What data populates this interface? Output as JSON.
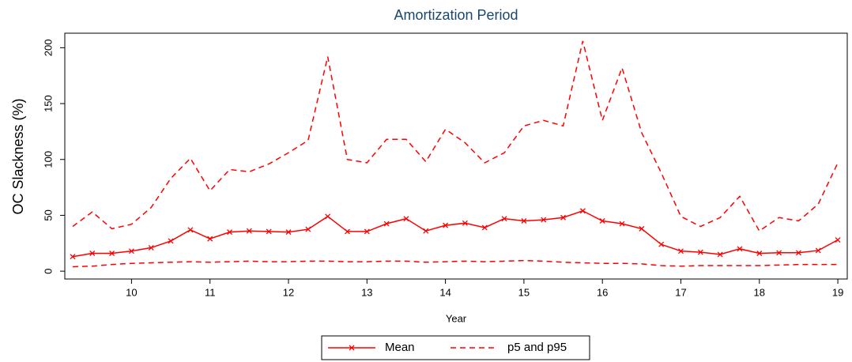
{
  "chart_data": {
    "type": "line",
    "title": "Amortization Period",
    "x_label": "Year",
    "y_label": "OC Slackness (%)",
    "x": [
      9.25,
      9.5,
      9.75,
      10,
      10.25,
      10.5,
      10.75,
      11,
      11.25,
      11.5,
      11.75,
      12,
      12.25,
      12.5,
      12.75,
      13,
      13.25,
      13.5,
      13.75,
      14,
      14.25,
      14.5,
      14.75,
      15,
      15.25,
      15.5,
      15.75,
      16,
      16.25,
      16.5,
      16.75,
      17,
      17.25,
      17.5,
      17.75,
      18,
      18.25,
      18.5,
      18.75,
      19
    ],
    "series": [
      {
        "name": "Mean",
        "color": "#ff0000",
        "values": [
          13,
          16,
          16,
          18,
          21,
          27,
          37,
          29,
          35,
          36,
          35.5,
          35,
          37.5,
          49,
          35.5,
          35.5,
          42.5,
          47,
          36,
          41,
          43,
          39,
          47,
          45,
          46,
          48,
          54,
          45,
          42.5,
          38,
          24,
          18,
          17,
          15,
          20,
          16,
          16.5,
          16.5,
          18.5,
          28
        ]
      },
      {
        "name": "p5 and p95",
        "color": "#ff0000",
        "dashed": true,
        "upper": [
          40,
          53,
          38,
          42,
          57,
          83,
          101,
          72,
          91,
          89,
          96,
          106,
          117,
          192,
          100,
          97,
          118,
          118,
          98,
          127,
          115,
          97,
          106,
          130,
          135,
          130,
          206,
          135,
          182,
          124,
          88,
          49,
          40,
          48,
          67,
          36,
          48,
          45,
          60,
          97
        ],
        "lower": [
          4,
          4.5,
          6,
          7,
          7.5,
          8,
          8.5,
          8,
          8.5,
          9,
          8.5,
          8.5,
          9,
          9,
          8.5,
          8.5,
          9,
          9,
          8,
          8.5,
          9,
          8.5,
          9,
          9.5,
          9,
          8,
          7.5,
          7,
          7,
          6.5,
          5,
          4.5,
          5,
          5,
          5,
          5,
          5.5,
          6,
          6,
          6
        ]
      }
    ],
    "xlim": [
      9.15,
      19.12
    ],
    "xticks": [
      10,
      11,
      12,
      13,
      14,
      15,
      16,
      17,
      18,
      19
    ],
    "ylim": [
      -7,
      213
    ],
    "yticks": [
      0,
      50,
      100,
      150,
      200
    ],
    "legend": "bottom"
  }
}
